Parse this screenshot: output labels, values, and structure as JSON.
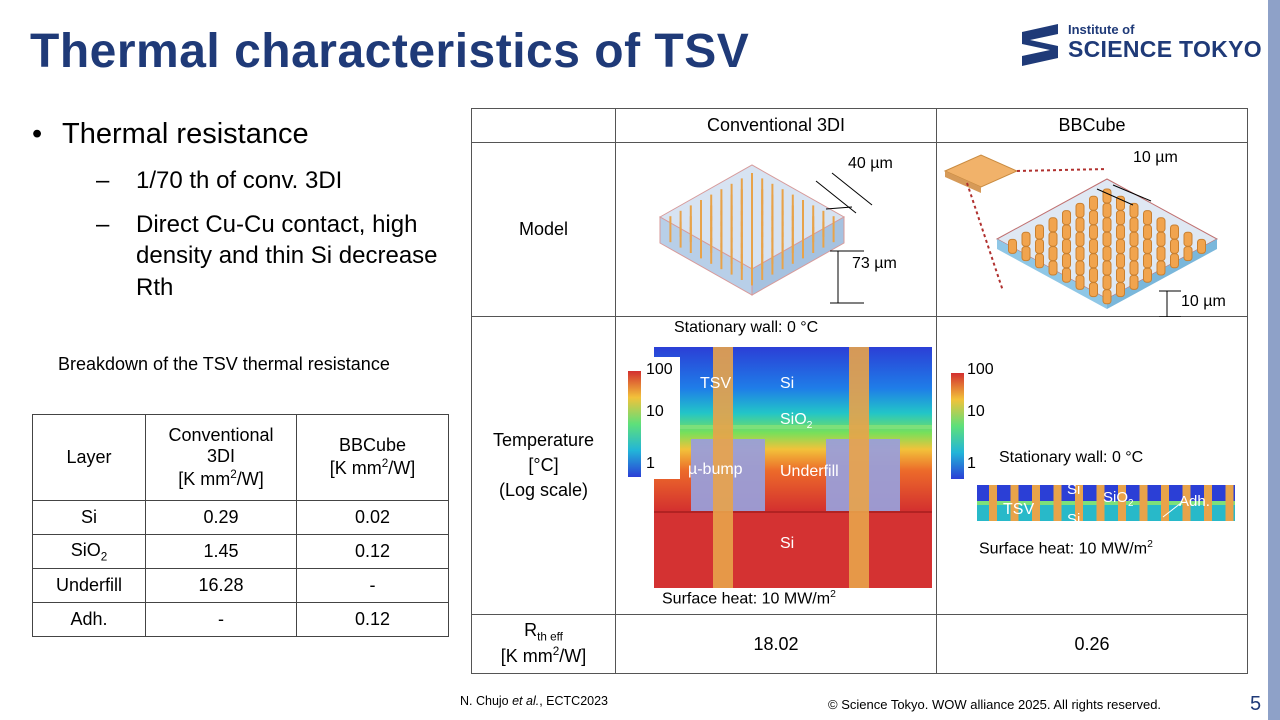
{
  "title": "Thermal characteristics of TSV",
  "logo": {
    "line1": "Institute of",
    "line2": "SCIENCE TOKYO"
  },
  "bullets": {
    "main": "Thermal resistance",
    "sub1": "1/70 th of conv. 3DI",
    "sub2": "Direct Cu-Cu contact, high density and thin Si decrease Rth"
  },
  "breakdown": {
    "title": "Breakdown of the TSV thermal resistance",
    "headers": {
      "layer": "Layer",
      "conv_line1": "Conventional",
      "conv_line2": "3DI",
      "conv_unit": "[K mm",
      "bb": "BBCube",
      "bb_unit": "[K mm",
      "unit_sup": "2",
      "unit_end": "/W]"
    },
    "rows": [
      {
        "layer": "Si",
        "sub": "",
        "conv": "0.29",
        "bb": "0.02"
      },
      {
        "layer": "SiO",
        "sub": "2",
        "conv": "1.45",
        "bb": "0.12"
      },
      {
        "layer": "Underfill",
        "sub": "",
        "conv": "16.28",
        "bb": "-"
      },
      {
        "layer": "Adh.",
        "sub": "",
        "conv": "-",
        "bb": "0.12"
      }
    ]
  },
  "compare": {
    "col1": "Conventional 3DI",
    "col2": "BBCube",
    "row_model": "Model",
    "row_temp_l1": "Temperature",
    "row_temp_l2": "[°C]",
    "row_temp_l3": "(Log scale)",
    "row_rth": "R",
    "row_rth_sub": "th eff",
    "row_rth_unit": "[K mm",
    "row_rth_sup": "2",
    "row_rth_end": "/W]",
    "rth_conv": "18.02",
    "rth_bb": "0.26",
    "model_conv_pitch": "40 µm",
    "model_conv_height": "73 µm",
    "model_bb_pitch": "10 µm",
    "model_bb_height": "10 µm",
    "temp_conv": {
      "top": "Stationary wall: 0 °C",
      "bottom": "Surface heat: 10 MW/m",
      "bottom_sup": "2",
      "scale": [
        "100",
        "10",
        "1"
      ],
      "labels": {
        "tsv": "TSV",
        "si_top": "Si",
        "sio2": "SiO",
        "sio2_sub": "2",
        "bump": "µ-bump",
        "underfill": "Underfill",
        "si_bottom": "Si"
      }
    },
    "temp_bb": {
      "top": "Stationary wall: 0 °C",
      "bottom": "Surface heat: 10 MW/m",
      "bottom_sup": "2",
      "scale": [
        "100",
        "10",
        "1"
      ],
      "labels": {
        "si_top": "Si",
        "tsv": "TSV",
        "si_bottom": "Si",
        "sio2": "SiO",
        "sio2_sub": "2",
        "adh": "Adh."
      }
    }
  },
  "footer": {
    "ref_author": "N. Chujo ",
    "ref_etal": "et al.",
    "ref_rest": ", ECTC2023",
    "copyright": "© Science Tokyo. WOW alliance 2025. All rights reserved.",
    "page": "5"
  },
  "colors": {
    "title": "#1f3a78",
    "tsv": "#e8a34a",
    "hot": "#d32f2f",
    "cold": "#2b3fd6"
  }
}
